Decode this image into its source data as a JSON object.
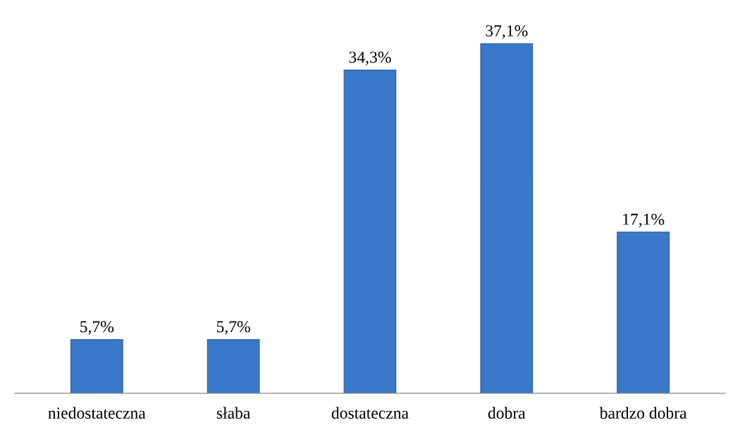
{
  "chart_data": {
    "type": "bar",
    "categories": [
      "niedostateczna",
      "słaba",
      "dostateczna",
      "dobra",
      "bardzo dobra"
    ],
    "values": [
      5.7,
      5.7,
      34.3,
      37.1,
      17.1
    ],
    "value_labels": [
      "5,7%",
      "5,7%",
      "34,3%",
      "37,1%",
      "17,1%"
    ],
    "color": "#3a78c9",
    "grid": false,
    "legend": false
  }
}
